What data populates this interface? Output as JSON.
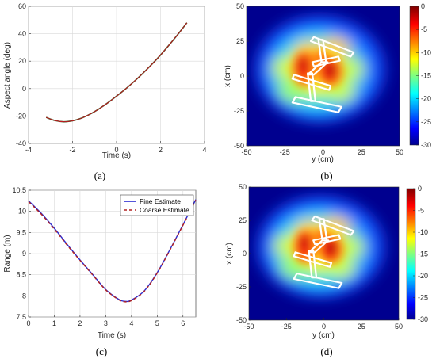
{
  "panels": [
    {
      "id": "a",
      "label": "(a)"
    },
    {
      "id": "b",
      "label": "(b)"
    },
    {
      "id": "c",
      "label": "(c)"
    },
    {
      "id": "d",
      "label": "(d)"
    }
  ],
  "chart_data": [
    {
      "panel": "a",
      "type": "line",
      "title": "",
      "xlabel": "Time (s)",
      "ylabel": "Aspect angle (deg)",
      "xlim": [
        -4,
        4
      ],
      "ylim": [
        -40,
        60
      ],
      "xticks": [
        -4,
        -2,
        0,
        2,
        4
      ],
      "yticks": [
        -40,
        -20,
        0,
        20,
        40,
        60
      ],
      "grid": true,
      "series": [
        {
          "color": "#1f5c1f",
          "width": 1.6,
          "x": [
            -3.2,
            -2.8,
            -2.4,
            -2.0,
            -1.6,
            -1.2,
            -0.8,
            -0.4,
            0.0,
            0.4,
            0.8,
            1.2,
            1.6,
            2.0,
            2.4,
            2.8,
            3.2
          ],
          "y": [
            -21,
            -23.3,
            -24.2,
            -23.5,
            -21.6,
            -18.6,
            -14.8,
            -10.4,
            -5.5,
            -0.4,
            5.2,
            11.2,
            17.6,
            24.5,
            32,
            39.8,
            48
          ]
        },
        {
          "color": "#c0181f",
          "width": 1.0,
          "x": [
            -3.2,
            -2.8,
            -2.4,
            -2.0,
            -1.6,
            -1.2,
            -0.8,
            -0.4,
            0.0,
            0.4,
            0.8,
            1.2,
            1.6,
            2.0,
            2.4,
            2.8,
            3.2
          ],
          "y": [
            -21,
            -23.3,
            -24.2,
            -23.5,
            -21.6,
            -18.6,
            -14.8,
            -10.4,
            -5.5,
            -0.4,
            5.2,
            11.2,
            17.6,
            24.5,
            32,
            39.8,
            48
          ]
        }
      ]
    },
    {
      "panel": "b",
      "type": "heatmap",
      "title": "",
      "xlabel": "y (cm)",
      "ylabel": "x (cm)",
      "xlim": [
        -50,
        50
      ],
      "ylim": [
        -50,
        50
      ],
      "xticks": [
        -50,
        -25,
        0,
        25,
        50
      ],
      "yticks": [
        -50,
        -25,
        0,
        25,
        50
      ],
      "colorbar": {
        "min": -30,
        "max": 0,
        "ticks": [
          0,
          -5,
          -10,
          -15,
          -20,
          -25,
          -30
        ]
      }
    },
    {
      "panel": "c",
      "type": "line",
      "title": "",
      "xlabel": "Time (s)",
      "ylabel": "Range (m)",
      "xlim": [
        0,
        6.5
      ],
      "ylim": [
        7.5,
        10.5
      ],
      "xticks": [
        0,
        1,
        2,
        3,
        4,
        5,
        6
      ],
      "yticks": [
        7.5,
        8,
        8.5,
        9,
        9.5,
        10,
        10.5
      ],
      "grid": true,
      "legend": {
        "position": "top-right"
      },
      "series": [
        {
          "name": "Fine Estimate",
          "color": "#2b2bd0",
          "dash": "",
          "x": [
            0,
            0.5,
            1,
            1.5,
            2,
            2.5,
            3,
            3.5,
            3.75,
            4,
            4.5,
            5,
            5.5,
            6,
            6.5
          ],
          "y": [
            10.25,
            9.95,
            9.6,
            9.22,
            8.85,
            8.5,
            8.15,
            7.92,
            7.87,
            7.9,
            8.12,
            8.55,
            9.1,
            9.68,
            10.28
          ]
        },
        {
          "name": "Coarse Estimate",
          "color": "#b22222",
          "dash": "4,3",
          "x": [
            0,
            0.5,
            1,
            1.5,
            2,
            2.5,
            3,
            3.5,
            3.75,
            4,
            4.5,
            5,
            5.5,
            6,
            6.5
          ],
          "y": [
            10.23,
            9.93,
            9.58,
            9.2,
            8.84,
            8.49,
            8.14,
            7.91,
            7.86,
            7.89,
            8.11,
            8.54,
            9.09,
            9.67,
            10.27
          ]
        }
      ]
    },
    {
      "panel": "d",
      "type": "heatmap",
      "title": "",
      "xlabel": "y (cm)",
      "ylabel": "x (cm)",
      "xlim": [
        -50,
        50
      ],
      "ylim": [
        -50,
        50
      ],
      "xticks": [
        -50,
        -25,
        0,
        25,
        50
      ],
      "yticks": [
        -50,
        -25,
        0,
        25,
        50
      ],
      "colorbar": {
        "min": -30,
        "max": 0,
        "ticks": [
          0,
          -5,
          -10,
          -15,
          -20,
          -25,
          -30
        ]
      }
    }
  ]
}
